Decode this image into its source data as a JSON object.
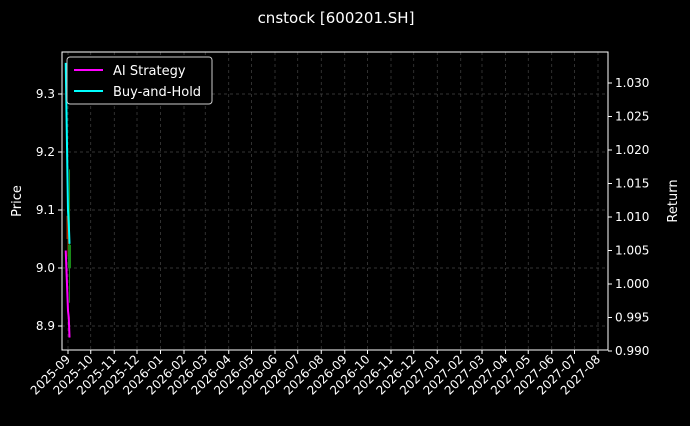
{
  "chart_data": {
    "type": "line",
    "title": "cnstock [600201.SH]",
    "ylabel": "Price",
    "y2label": "Return",
    "ylim": [
      8.86,
      9.37
    ],
    "y2lim": [
      0.99,
      1.033
    ],
    "yticks": [
      "8.9",
      "9.0",
      "9.1",
      "9.2",
      "9.3"
    ],
    "y2ticks": [
      "0.990",
      "0.995",
      "1.000",
      "1.005",
      "1.010",
      "1.015",
      "1.020",
      "1.025",
      "1.030"
    ],
    "xticks": [
      "2025-09",
      "2025-10",
      "2025-11",
      "2025-12",
      "2026-01",
      "2026-02",
      "2026-03",
      "2026-04",
      "2026-05",
      "2026-06",
      "2026-07",
      "2026-08",
      "2026-09",
      "2026-10",
      "2026-11",
      "2026-12",
      "2027-01",
      "2027-02",
      "2027-03",
      "2027-04",
      "2027-05",
      "2027-06",
      "2027-07",
      "2027-08"
    ],
    "grid": true,
    "legend_position": "top-left",
    "series": [
      {
        "name": "AI Strategy",
        "color": "#ff00ff",
        "x": [
          "2025-08-29",
          "2025-09-01",
          "2025-09-02",
          "2025-09-03"
        ],
        "values": [
          1.005,
          0.996,
          0.995,
          0.992
        ]
      },
      {
        "name": "Buy-and-Hold",
        "color": "#00ffff",
        "x": [
          "2025-08-29",
          "2025-09-01",
          "2025-09-02",
          "2025-09-03"
        ],
        "values": [
          1.033,
          1.011,
          1.009,
          1.006
        ]
      }
    ],
    "candles": [
      {
        "x": "2025-09-01",
        "open": 9.09,
        "close": 9.05,
        "high": 9.1,
        "low": 9.02,
        "color": "#b03000"
      },
      {
        "x": "2025-09-03",
        "open": 9.0,
        "close": 9.04,
        "high": 9.17,
        "low": 8.94,
        "color": "#1a8a1a"
      }
    ]
  }
}
